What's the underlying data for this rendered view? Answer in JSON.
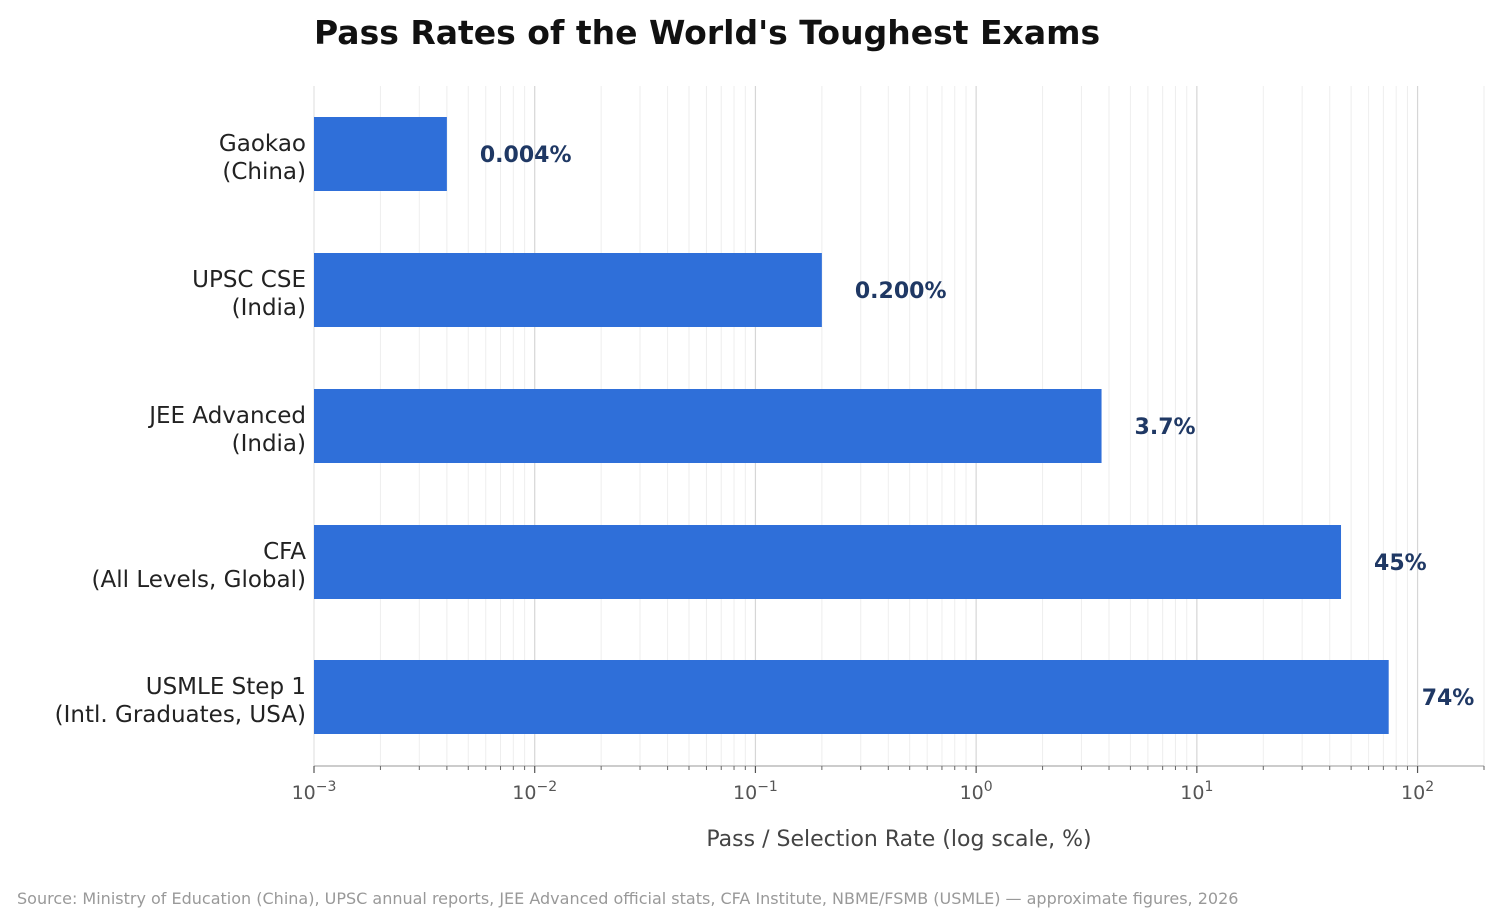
{
  "chart_data": {
    "type": "bar",
    "orientation": "horizontal",
    "title": "Pass Rates of the World's Toughest Exams",
    "xlabel": "Pass / Selection Rate (log scale, %)",
    "ylabel": "",
    "xscale": "log",
    "xlim": [
      0.001,
      200
    ],
    "grid": true,
    "categories": [
      [
        "Gaokao",
        "(China)"
      ],
      [
        "UPSC CSE",
        "(India)"
      ],
      [
        "JEE Advanced",
        "(India)"
      ],
      [
        "CFA",
        "(All Levels, Global)"
      ],
      [
        "USMLE Step 1",
        "(Intl. Graduates, USA)"
      ]
    ],
    "values": [
      0.004,
      0.2,
      3.7,
      45,
      74
    ],
    "value_labels": [
      "0.004%",
      "0.200%",
      "3.7%",
      "45%",
      "74%"
    ],
    "xticks": [
      {
        "value": 0.001,
        "base": "10",
        "exp": "−3"
      },
      {
        "value": 0.01,
        "base": "10",
        "exp": "−2"
      },
      {
        "value": 0.1,
        "base": "10",
        "exp": "−1"
      },
      {
        "value": 1,
        "base": "10",
        "exp": "0"
      },
      {
        "value": 10,
        "base": "10",
        "exp": "1"
      },
      {
        "value": 100,
        "base": "10",
        "exp": "2"
      }
    ],
    "bar_color": "#2f6fd9",
    "label_color": "#1f3864",
    "source": "Source: Ministry of Education (China), UPSC annual reports, JEE Advanced official stats, CFA Institute, NBME/FSMB (USMLE) — approximate figures, 2026"
  }
}
